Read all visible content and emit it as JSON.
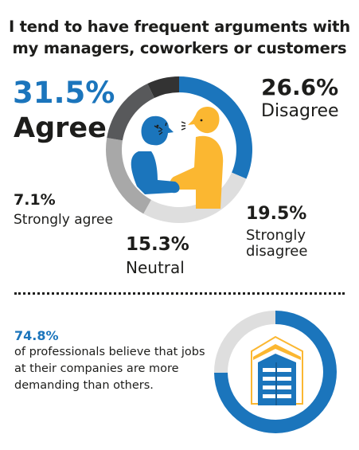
{
  "title": {
    "line1": "I tend to have frequent arguments with",
    "line2": "my managers, coworkers or customers"
  },
  "colors": {
    "agree": "#1b75bc",
    "disagree": "#dedede",
    "strongly_disagree": "#a8a8a8",
    "neutral": "#58595b",
    "strongly_agree": "#333333",
    "person_left": "#1b75bc",
    "person_right": "#fbb731"
  },
  "chart_data": {
    "type": "pie",
    "donut": true,
    "title": "I tend to have frequent arguments with my managers, coworkers or customers",
    "slices": [
      {
        "label": "Agree",
        "value": 31.5,
        "display": "31.5%"
      },
      {
        "label": "Disagree",
        "value": 26.6,
        "display": "26.6%"
      },
      {
        "label": "Strongly disagree",
        "value": 19.5,
        "display": "19.5%"
      },
      {
        "label": "Neutral",
        "value": 15.3,
        "display": "15.3%"
      },
      {
        "label": "Strongly agree",
        "value": 7.1,
        "display": "7.1%"
      }
    ]
  },
  "stat": {
    "value": 74.8,
    "display": "74.8%",
    "text": "of professionals believe that jobs at their companies are more demanding than others."
  }
}
